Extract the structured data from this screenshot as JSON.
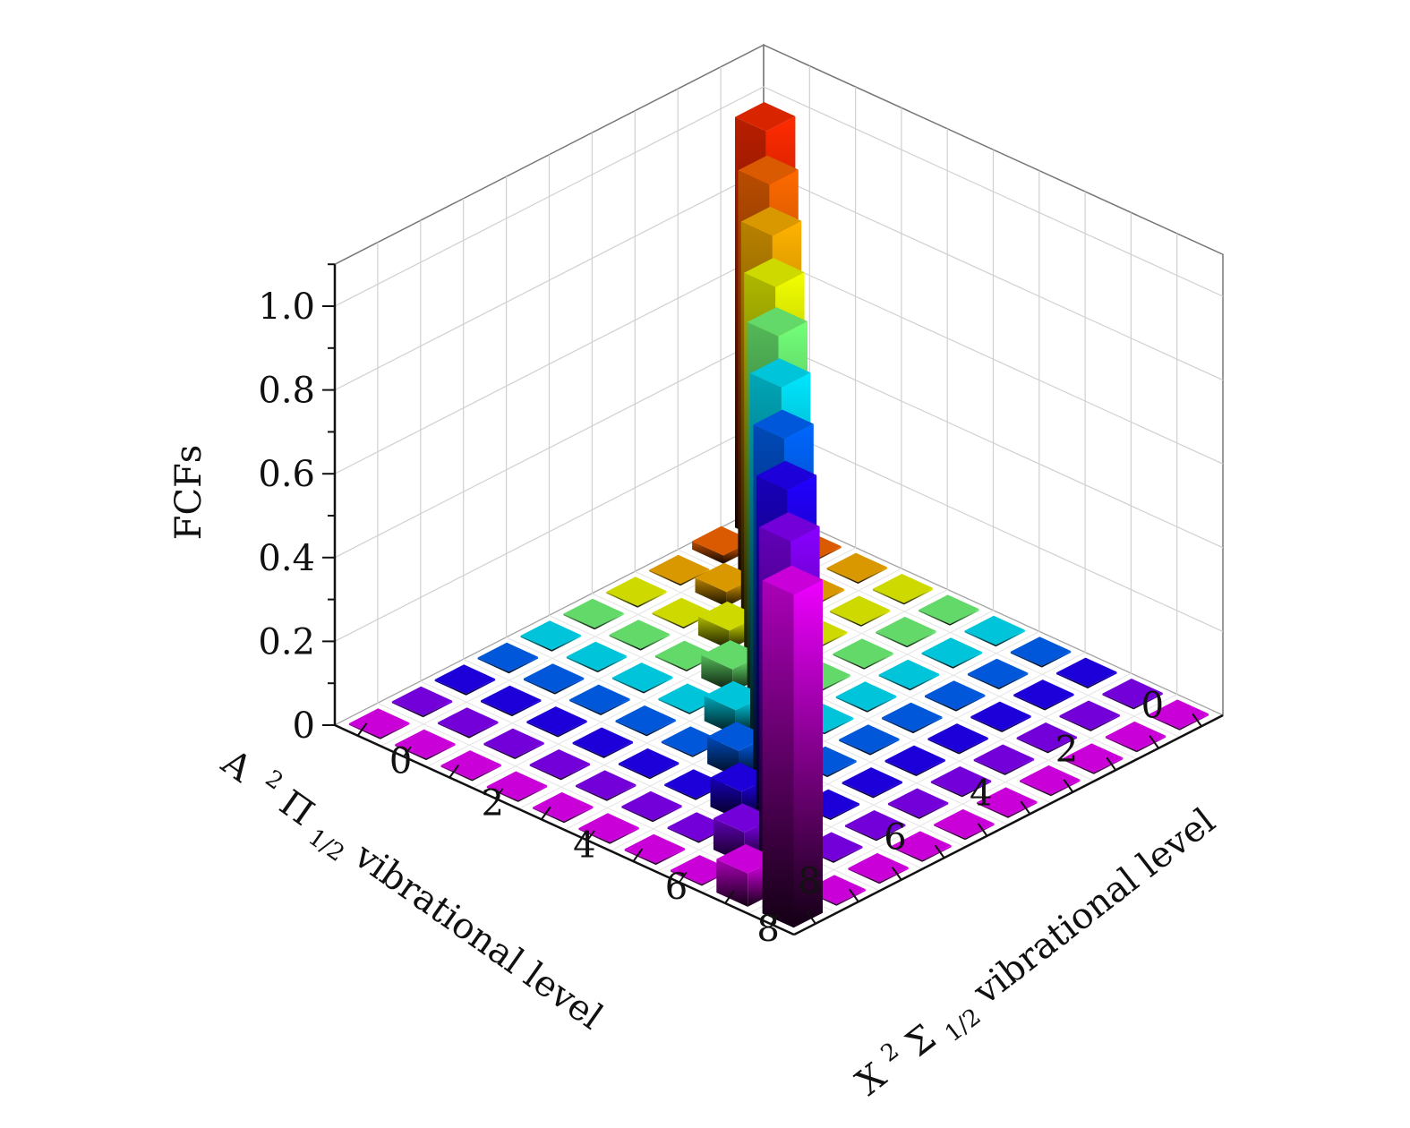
{
  "chart_data": {
    "type": "bar3d",
    "zlabel": "FCFs",
    "xlabel": "A",
    "xlabel_term": "2",
    "xlabel_sym": "Π",
    "xlabel_sub": "1/2",
    "xlabel_rest": " vibrational level",
    "ylabel": "X",
    "ylabel_term": "2",
    "ylabel_sym": "Σ",
    "ylabel_sub": "1/2",
    "ylabel_rest": " vibrational level",
    "x_ticks": [
      "0",
      "2",
      "4",
      "6",
      "8"
    ],
    "y_ticks": [
      "0",
      "2",
      "4",
      "6",
      "8"
    ],
    "z_ticks": [
      "0",
      "0.2",
      "0.4",
      "0.6",
      "0.8",
      "1.0"
    ],
    "zlim": [
      0,
      1.1
    ],
    "grid": true,
    "x_levels": [
      0,
      1,
      2,
      3,
      4,
      5,
      6,
      7,
      8,
      9
    ],
    "y_levels": [
      0,
      1,
      2,
      3,
      4,
      5,
      6,
      7,
      8,
      9
    ],
    "diagonal_values": [
      0.98,
      0.955,
      0.935,
      0.915,
      0.9,
      0.88,
      0.86,
      0.84,
      0.82,
      0.795
    ],
    "first_offdiagonal_values": [
      0.02,
      0.035,
      0.045,
      0.055,
      0.06,
      0.065,
      0.07,
      0.075,
      0.08
    ],
    "other_values": 0.004,
    "colors": [
      "#ff2a00",
      "#ff6a00",
      "#ffb300",
      "#f2ff00",
      "#73ff7a",
      "#00e6ff",
      "#0066ff",
      "#2200ff",
      "#8800ff",
      "#ee00ff"
    ]
  }
}
